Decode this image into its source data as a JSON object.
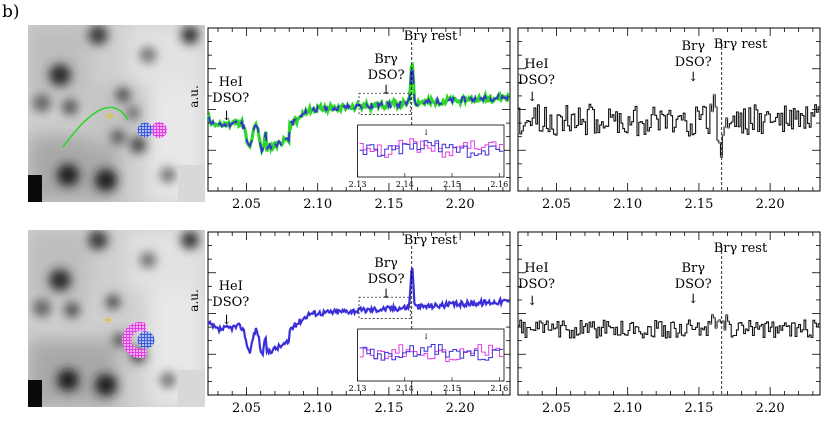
{
  "panel_label": "b)",
  "annotations": {
    "hei": "HeI",
    "dso": "DSO?",
    "brg": "Brγ",
    "brg_rest": "Brγ rest",
    "arrow": "↓"
  },
  "ylabel": "a.u.",
  "colors": {
    "spectrum": "#3a2fd8",
    "fit": "#2cd62c",
    "inset_pink": "#e040e0",
    "residual": "#111111",
    "residual_gray": "#888888",
    "cross": "#d7c42a",
    "blob_blue": "#3c5cd8",
    "blob_pink": "#e040e0"
  },
  "chart_data": [
    {
      "type": "line",
      "name_hint": "top spectrum",
      "x_ticks": [
        "2.05",
        "2.10",
        "2.15",
        "2.20"
      ],
      "xlim": [
        2.023,
        2.235
      ],
      "vline_x": 2.166,
      "inset_x_ticks": [
        "2.13",
        "2.14",
        "2.15",
        "2.16"
      ],
      "inset_xlim": [
        2.13,
        2.161
      ]
    },
    {
      "type": "line",
      "name_hint": "top residual",
      "x_ticks": [
        "2.05",
        "2.10",
        "2.15",
        "2.20"
      ],
      "xlim": [
        2.023,
        2.235
      ],
      "vline_x": 2.166
    },
    {
      "type": "line",
      "name_hint": "bottom spectrum",
      "x_ticks": [
        "2.05",
        "2.10",
        "2.15",
        "2.20"
      ],
      "xlim": [
        2.023,
        2.235
      ],
      "vline_x": 2.166,
      "inset_x_ticks": [
        "2.13",
        "2.14",
        "2.15",
        "2.16"
      ],
      "inset_xlim": [
        2.13,
        2.161
      ]
    },
    {
      "type": "line",
      "name_hint": "bottom residual",
      "x_ticks": [
        "2.05",
        "2.10",
        "2.15",
        "2.20"
      ],
      "xlim": [
        2.023,
        2.235
      ],
      "vline_x": 2.166
    }
  ]
}
